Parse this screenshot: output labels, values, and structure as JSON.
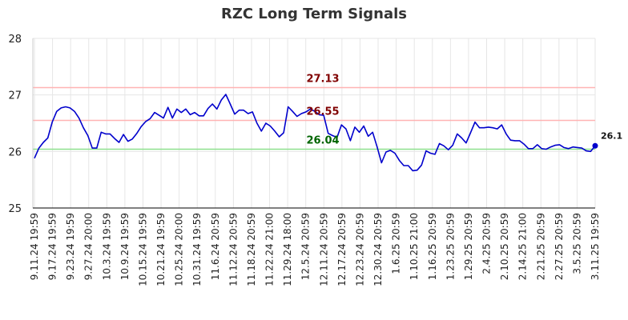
{
  "chart_data": {
    "type": "line",
    "title": "RZC Long Term Signals",
    "ylim": [
      25,
      28
    ],
    "yticks": [
      "25",
      "26",
      "27",
      "28"
    ],
    "grid": true,
    "line_color": "#0000cc",
    "x_tick_labels": [
      "9.11.24 19:59",
      "9.17.24 19:59",
      "9.23.24 19:59",
      "9.27.24 20:00",
      "10.3.24 19:59",
      "10.9.24 19:59",
      "10.15.24 19:59",
      "10.21.24 19:59",
      "10.25.24 20:00",
      "10.31.24 19:59",
      "11.6.24 20:59",
      "11.12.24 20:59",
      "11.18.24 20:59",
      "11.22.24 21:00",
      "11.29.24 18:00",
      "12.5.24 20:59",
      "12.11.24 20:59",
      "12.17.24 20:59",
      "12.23.24 20:59",
      "12.30.24 20:59",
      "1.6.25 20:59",
      "1.10.25 21:00",
      "1.16.25 20:59",
      "1.23.25 20:59",
      "1.29.25 20:59",
      "2.4.25 20:59",
      "2.10.25 20:59",
      "2.14.25 21:00",
      "2.21.25 20:59",
      "2.27.25 20:59",
      "3.5.25 20:59",
      "3.11.25 19:59"
    ],
    "series": [
      {
        "values": [
          25.88,
          26.06,
          26.16,
          26.24,
          26.52,
          26.71,
          26.77,
          26.79,
          26.77,
          26.71,
          26.59,
          26.42,
          26.28,
          26.06,
          26.06,
          26.34,
          26.31,
          26.31,
          26.23,
          26.16,
          26.3,
          26.18,
          26.22,
          26.32,
          26.44,
          26.53,
          26.58,
          26.69,
          26.64,
          26.59,
          26.78,
          26.59,
          26.75,
          26.69,
          26.75,
          26.65,
          26.69,
          26.63,
          26.63,
          26.76,
          26.84,
          26.75,
          26.91,
          27.01,
          26.84,
          26.66,
          26.73,
          26.73,
          26.67,
          26.7,
          26.5,
          26.36,
          26.5,
          26.45,
          26.36,
          26.26,
          26.33,
          26.79,
          26.71,
          26.62,
          26.67,
          26.7,
          26.75,
          26.71,
          26.65,
          26.64,
          26.32,
          26.28,
          26.25,
          26.47,
          26.4,
          26.19,
          26.43,
          26.34,
          26.45,
          26.27,
          26.34,
          26.08,
          25.8,
          25.99,
          26.02,
          25.97,
          25.84,
          25.75,
          25.75,
          25.66,
          25.67,
          25.76,
          26.01,
          25.97,
          25.95,
          26.14,
          26.1,
          26.03,
          26.11,
          26.31,
          26.24,
          26.15,
          26.33,
          26.52,
          26.42,
          26.42,
          26.43,
          26.42,
          26.4,
          26.47,
          26.31,
          26.2,
          26.19,
          26.19,
          26.13,
          26.05,
          26.05,
          26.12,
          26.05,
          26.04,
          26.08,
          26.11,
          26.12,
          26.07,
          26.05,
          26.08,
          26.07,
          26.06,
          26.01,
          26.0,
          26.1
        ]
      }
    ],
    "reference_lines": [
      {
        "value": 27.13,
        "label": "27.13",
        "line_color": "#ffb3b3",
        "label_color": "#800000"
      },
      {
        "value": 26.55,
        "label": "26.55",
        "line_color": "#ffb3b3",
        "label_color": "#800000"
      },
      {
        "value": 26.04,
        "label": "26.04",
        "line_color": "#8ee08e",
        "label_color": "#006400"
      }
    ],
    "last_value_label": "26.1",
    "last_value": 26.1
  }
}
